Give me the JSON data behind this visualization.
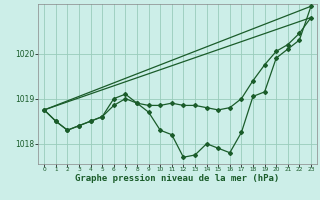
{
  "background_color": "#cceee8",
  "grid_color": "#99ccbb",
  "line_color": "#1a5c2a",
  "xlabel": "Graphe pression niveau de la mer (hPa)",
  "xlabel_fontsize": 6.5,
  "xlim": [
    -0.5,
    23.5
  ],
  "ylim": [
    1017.55,
    1021.1
  ],
  "yticks": [
    1018,
    1019,
    1020
  ],
  "xticks": [
    0,
    1,
    2,
    3,
    4,
    5,
    6,
    7,
    8,
    9,
    10,
    11,
    12,
    13,
    14,
    15,
    16,
    17,
    18,
    19,
    20,
    21,
    22,
    23
  ],
  "series1_x": [
    0,
    23
  ],
  "series1_y": [
    1018.75,
    1021.05
  ],
  "series2_x": [
    0,
    1,
    2,
    3,
    4,
    5,
    6,
    7,
    8,
    9,
    10,
    11,
    12,
    13,
    14,
    15,
    16,
    17,
    18,
    19,
    20,
    21,
    22,
    23
  ],
  "series2_y": [
    1018.75,
    1018.5,
    1018.3,
    1018.4,
    1018.5,
    1018.6,
    1018.85,
    1019.0,
    1018.9,
    1018.85,
    1018.85,
    1018.9,
    1018.85,
    1018.85,
    1018.8,
    1018.75,
    1018.8,
    1019.0,
    1019.4,
    1019.75,
    1020.05,
    1020.2,
    1020.45,
    1020.8
  ],
  "series3_x": [
    0,
    1,
    2,
    3,
    4,
    5,
    6,
    7,
    8,
    9,
    10,
    11,
    12,
    13,
    14,
    15,
    16,
    17,
    18,
    19,
    20,
    21,
    22,
    23
  ],
  "series3_y": [
    1018.75,
    1018.5,
    1018.3,
    1018.4,
    1018.5,
    1018.6,
    1019.0,
    1019.1,
    1018.9,
    1018.7,
    1018.3,
    1018.2,
    1017.7,
    1017.75,
    1018.0,
    1017.9,
    1017.8,
    1018.25,
    1019.05,
    1019.15,
    1019.9,
    1020.1,
    1020.3,
    1021.05
  ],
  "series4_x": [
    0,
    23
  ],
  "series4_y": [
    1018.75,
    1020.8
  ],
  "marker": "D",
  "marker_size": 2.0,
  "line_width": 0.9
}
